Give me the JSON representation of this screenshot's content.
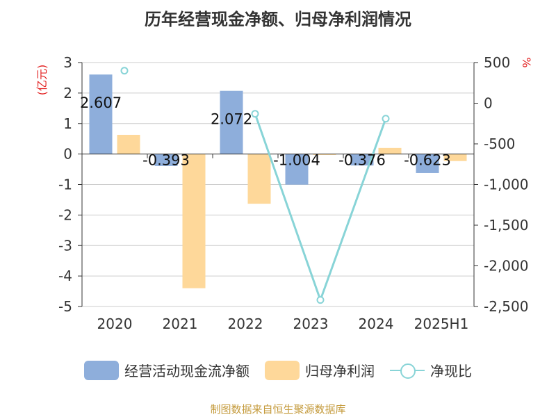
{
  "title": "历年经营现金净额、归母净利润情况",
  "source_note": "制图数据来自恒生聚源数据库",
  "colors": {
    "cash_flow": "#8eaedb",
    "net_profit": "#fed89a",
    "ratio": "#88d4d7",
    "left_axis_label": "#e32222",
    "right_axis_label": "#e32222",
    "grid": "#cccccc",
    "axis": "#333333",
    "source": "#c49a3b"
  },
  "chart_data": {
    "type": "bar",
    "categories": [
      "2020",
      "2021",
      "2022",
      "2023",
      "2024",
      "2025H1"
    ],
    "ylabel": "(亿元)",
    "y2label": "%",
    "ylim": [
      -5,
      3
    ],
    "y2lim": [
      -2500,
      500
    ],
    "yticks": [
      "3",
      "2",
      "1",
      "0",
      "-1",
      "-2",
      "-3",
      "-4",
      "-5"
    ],
    "y2ticks": [
      "500",
      "0",
      "-500",
      "-1,000",
      "-1,500",
      "-2,000",
      "-2,500"
    ],
    "series": [
      {
        "name": "经营活动现金流净额",
        "type": "bar",
        "axis": "left",
        "values": [
          2.607,
          -0.393,
          2.072,
          -1.004,
          -0.376,
          -0.623
        ],
        "labels": [
          "2.607",
          "-0.393",
          "2.072",
          "-1.004",
          "-0.376",
          "-0.623"
        ]
      },
      {
        "name": "归母净利润",
        "type": "bar",
        "axis": "left",
        "values": [
          0.63,
          -4.4,
          -1.63,
          -0.03,
          0.2,
          -0.23
        ]
      },
      {
        "name": "净现比",
        "type": "line",
        "axis": "right",
        "values": [
          400,
          null,
          -130,
          -2420,
          -190,
          null
        ]
      }
    ],
    "grid": true,
    "legend_position": "bottom"
  }
}
